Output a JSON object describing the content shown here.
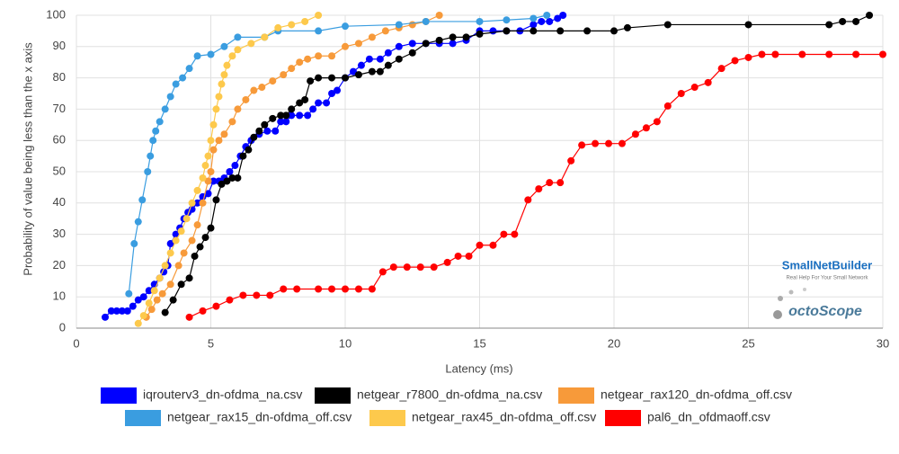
{
  "chart_data": {
    "type": "line",
    "xlabel": "Latency (ms)",
    "ylabel": "Probability of value being less than the x axis",
    "xlim": [
      0,
      30
    ],
    "xticks": [
      0,
      5,
      10,
      15,
      20,
      25,
      30
    ],
    "ylim": [
      0,
      100
    ],
    "yticks": [
      0,
      10,
      20,
      30,
      40,
      50,
      60,
      70,
      80,
      90,
      100
    ],
    "grid": true,
    "legend": "bottom",
    "logos": [
      "SmallNetBuilder",
      "Real Help For Your Small Network",
      "octoScope"
    ],
    "series": [
      {
        "name": "iqrouterv3_dn-ofdma_na.csv",
        "color": "#0000ff",
        "x": [
          1.07,
          1.3,
          1.5,
          1.7,
          1.9,
          2.1,
          2.3,
          2.5,
          2.7,
          2.9,
          3.1,
          3.25,
          3.4,
          3.5,
          3.7,
          3.85,
          4.0,
          4.15,
          4.3,
          4.5,
          4.7,
          4.9,
          5.1,
          5.3,
          5.5,
          5.7,
          5.9,
          6.1,
          6.3,
          6.5,
          6.8,
          7.1,
          7.4,
          7.6,
          7.8,
          8.0,
          8.3,
          8.6,
          8.8,
          9.0,
          9.3,
          9.5,
          9.7,
          10.0,
          10.3,
          10.6,
          10.9,
          11.3,
          11.6,
          12.0,
          12.5,
          13.0,
          13.5,
          14.0,
          14.5,
          15.0,
          15.5,
          16.0,
          16.5,
          17.0,
          17.3,
          17.6,
          17.9,
          18.1
        ],
        "values": [
          3.5,
          5.5,
          5.5,
          5.5,
          5.5,
          7,
          9,
          10,
          12,
          14,
          16,
          18,
          20,
          27,
          30,
          32,
          35,
          37,
          38,
          40,
          42,
          43,
          47,
          47,
          48,
          50,
          52,
          55,
          58,
          60,
          62,
          63,
          63,
          66,
          66,
          68,
          68,
          68,
          70,
          72,
          72,
          75,
          76,
          80,
          82,
          84,
          86,
          86,
          88,
          90,
          91,
          91,
          91,
          91,
          92,
          95,
          95,
          95,
          95,
          97,
          98,
          98,
          99,
          100
        ]
      },
      {
        "name": "netgear_r7800_dn-ofdma_na.csv",
        "color": "#000000",
        "x": [
          3.3,
          3.6,
          3.9,
          4.2,
          4.4,
          4.6,
          4.8,
          5.0,
          5.2,
          5.4,
          5.6,
          5.8,
          6.0,
          6.2,
          6.4,
          6.6,
          6.8,
          7.0,
          7.3,
          7.6,
          7.8,
          8.0,
          8.3,
          8.5,
          8.7,
          9.0,
          9.5,
          10.0,
          10.5,
          11.0,
          11.3,
          11.6,
          12.0,
          12.5,
          13.0,
          13.5,
          14.0,
          14.5,
          15.0,
          16.0,
          17.0,
          18.0,
          19.0,
          20.0,
          20.5,
          22.0,
          25.0,
          28.0,
          28.5,
          29.0,
          29.5
        ],
        "values": [
          5,
          9,
          14,
          16,
          23,
          26,
          29,
          32,
          41,
          46,
          47,
          48,
          48,
          55,
          57,
          61,
          63,
          65,
          67,
          68,
          68,
          70,
          72,
          73,
          79,
          80,
          80,
          80,
          81,
          82,
          82,
          84,
          86,
          88,
          91,
          92,
          93,
          93,
          94,
          95,
          95,
          95,
          95,
          95,
          96,
          97,
          97,
          97,
          98,
          98,
          100
        ]
      },
      {
        "name": "netgear_rax120_dn-ofdma_off.csv",
        "color": "#f79a3a",
        "x": [
          2.6,
          2.8,
          3.0,
          3.2,
          3.5,
          3.8,
          4.0,
          4.3,
          4.5,
          4.7,
          4.9,
          5.0,
          5.1,
          5.3,
          5.5,
          5.8,
          6.0,
          6.3,
          6.6,
          6.9,
          7.3,
          7.7,
          8.0,
          8.3,
          8.6,
          9.0,
          9.5,
          10.0,
          10.5,
          11.0,
          11.5,
          12.0,
          12.5,
          13.0,
          13.5
        ],
        "values": [
          3.5,
          6,
          9,
          11,
          14,
          20,
          24,
          28,
          33,
          40,
          47,
          50,
          57,
          60,
          62,
          66,
          70,
          73,
          76,
          77,
          79,
          81,
          83,
          85,
          86,
          87,
          87,
          90,
          91,
          93,
          95,
          96,
          97,
          98,
          100
        ]
      },
      {
        "name": "netgear_rax15_dn-ofdma_off.csv",
        "color": "#3a9de0",
        "x": [
          1.95,
          2.15,
          2.3,
          2.45,
          2.65,
          2.75,
          2.85,
          2.95,
          3.1,
          3.3,
          3.5,
          3.7,
          3.95,
          4.2,
          4.5,
          5.0,
          5.5,
          6.0,
          7.0,
          7.5,
          9.0,
          10.0,
          12.0,
          13.0,
          15.0,
          16.0,
          17.0,
          17.5
        ],
        "values": [
          11,
          27,
          34,
          41,
          50,
          55,
          60,
          63,
          66,
          70,
          74,
          78,
          80,
          83,
          87,
          87.5,
          90,
          93,
          93,
          95,
          95,
          96.5,
          97,
          98,
          98,
          98.5,
          99,
          100
        ]
      },
      {
        "name": "netgear_rax45_dn-ofdma_off.csv",
        "color": "#fdc94c",
        "x": [
          2.3,
          2.5,
          2.7,
          2.9,
          3.1,
          3.3,
          3.5,
          3.7,
          3.9,
          4.1,
          4.3,
          4.5,
          4.7,
          4.8,
          4.9,
          5.0,
          5.1,
          5.2,
          5.3,
          5.4,
          5.5,
          5.6,
          5.8,
          6.0,
          6.5,
          7.0,
          7.5,
          8.0,
          8.5,
          9.0
        ],
        "values": [
          1.5,
          4,
          8,
          12,
          16,
          20,
          24,
          28,
          31,
          35,
          40,
          44,
          48,
          52,
          55,
          60,
          65,
          70,
          74,
          78,
          81,
          84,
          87,
          89,
          91,
          93,
          96,
          97,
          98,
          100
        ]
      },
      {
        "name": "pal6_dn_ofdmaoff.csv",
        "color": "#ff0000",
        "x": [
          4.2,
          4.7,
          5.2,
          5.7,
          6.2,
          6.7,
          7.2,
          7.7,
          8.2,
          9.0,
          9.5,
          10.0,
          10.5,
          11.0,
          11.4,
          11.8,
          12.3,
          12.8,
          13.3,
          13.8,
          14.2,
          14.6,
          15.0,
          15.5,
          15.9,
          16.3,
          16.8,
          17.2,
          17.6,
          18.0,
          18.4,
          18.8,
          19.3,
          19.8,
          20.3,
          20.8,
          21.2,
          21.6,
          22.0,
          22.5,
          23.0,
          23.5,
          24.0,
          24.5,
          25.0,
          25.5,
          26.0,
          27.0,
          28.0,
          29.0,
          30.0
        ],
        "values": [
          3.5,
          5.5,
          7,
          9,
          10.5,
          10.5,
          10.5,
          12.5,
          12.5,
          12.5,
          12.5,
          12.5,
          12.5,
          12.5,
          18,
          19.5,
          19.5,
          19.5,
          19.5,
          21,
          23,
          23,
          26.5,
          26.5,
          30,
          30,
          41,
          44.5,
          46.5,
          46.5,
          53.5,
          58.5,
          59,
          59,
          59,
          62,
          64,
          66,
          71,
          75,
          77,
          78.5,
          83,
          85.5,
          86.5,
          87.5,
          87.5,
          87.5,
          87.5,
          87.5,
          87.5
        ]
      }
    ]
  }
}
